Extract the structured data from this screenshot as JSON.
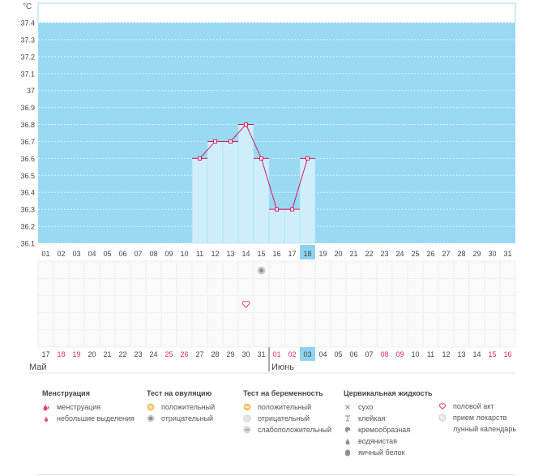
{
  "chart_data": {
    "type": "bar",
    "y_unit": "°C",
    "ylim": [
      36.1,
      37.5
    ],
    "y_ticks": [
      "37.4",
      "37.3",
      "37.2",
      "37.1",
      "37",
      "36.9",
      "36.8",
      "36.7",
      "36.6",
      "36.5",
      "36.4",
      "36.3",
      "36.2",
      "36.1"
    ],
    "cycle_days": [
      "01",
      "02",
      "03",
      "04",
      "05",
      "06",
      "07",
      "08",
      "09",
      "10",
      "11",
      "12",
      "13",
      "14",
      "15",
      "16",
      "17",
      "18",
      "19",
      "20",
      "21",
      "22",
      "23",
      "24",
      "25",
      "26",
      "27",
      "28",
      "29",
      "30",
      "31"
    ],
    "dates": [
      "17",
      "18",
      "19",
      "20",
      "21",
      "22",
      "23",
      "24",
      "25",
      "26",
      "27",
      "28",
      "29",
      "30",
      "31",
      "01",
      "02",
      "03",
      "04",
      "05",
      "06",
      "07",
      "08",
      "09",
      "10",
      "11",
      "12",
      "13",
      "14",
      "15",
      "16"
    ],
    "weekend_dates": [
      "18",
      "19",
      "25",
      "26",
      "01",
      "02",
      "08",
      "09",
      "15",
      "16"
    ],
    "current_cycle_day": "18",
    "current_date": "03",
    "months": [
      "Май",
      "Июнь"
    ],
    "series": [
      {
        "values": [
          null,
          null,
          null,
          null,
          null,
          null,
          null,
          null,
          null,
          null,
          36.6,
          36.7,
          36.7,
          36.8,
          36.6,
          36.3,
          36.3,
          36.6,
          null,
          null,
          null,
          null,
          null,
          null,
          null,
          null,
          null,
          null,
          null,
          null,
          null
        ]
      }
    ],
    "markers": [
      {
        "day": "15",
        "type": "test-negative-icon"
      },
      {
        "day": "14",
        "type": "heart-icon"
      }
    ],
    "grid": true,
    "colors": {
      "plot_bg": "#99d9f3",
      "bar_fill": "#cfeefb",
      "line": "#d81b60",
      "current": "#8dd3ef"
    }
  },
  "legend": {
    "menstruation": {
      "title": "Менструация",
      "items": [
        "менструация",
        "небольшие выделения"
      ]
    },
    "ovulation": {
      "title": "Тест на овуляцию",
      "items": [
        "положительный",
        "отрицательный"
      ]
    },
    "pregnancy": {
      "title": "Тест на беременность",
      "items": [
        "положительный",
        "отрицательный",
        "слабоположительный"
      ]
    },
    "cervical": {
      "title": "Цервикальная жидкость",
      "items": [
        "сухо",
        "клейкая",
        "кремообразная",
        "водянистая",
        "яичный белок"
      ]
    },
    "other": {
      "items": [
        "половой акт",
        "прием лекарств",
        "лунный календарь"
      ]
    }
  }
}
